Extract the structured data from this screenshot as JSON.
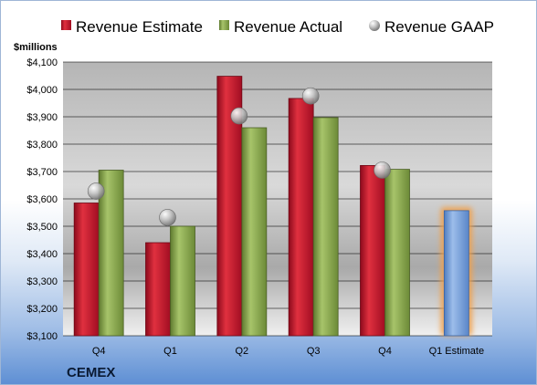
{
  "chart_data": {
    "type": "bar",
    "unit_label": "$millions",
    "brand": "CEMEX",
    "categories": [
      "Q4",
      "Q1",
      "Q2",
      "Q3",
      "Q4",
      "Q1 Estimate"
    ],
    "ylim": [
      3100,
      4100
    ],
    "yticks": [
      3100,
      3200,
      3300,
      3400,
      3500,
      3600,
      3700,
      3800,
      3900,
      4000,
      4100
    ],
    "ytick_labels": [
      "$3,100",
      "$3,200",
      "$3,300",
      "$3,400",
      "$3,500",
      "$3,600",
      "$3,700",
      "$3,800",
      "$3,900",
      "$4,000",
      "$4,100"
    ],
    "grid": true,
    "legend_position": "top",
    "series": [
      {
        "name": "Revenue Estimate",
        "kind": "bar",
        "color": "#c8102e",
        "values": [
          3585,
          3440,
          4048,
          3967,
          3722,
          null
        ]
      },
      {
        "name": "Revenue Actual",
        "kind": "bar",
        "color": "#8cab52",
        "values": [
          3705,
          3500,
          3860,
          3897,
          3708,
          null
        ]
      },
      {
        "name": "Revenue GAAP",
        "kind": "marker",
        "color": "#b8b8b8",
        "values": [
          3628,
          3532,
          3903,
          3976,
          3705,
          null
        ]
      }
    ],
    "estimate": {
      "category_index": 5,
      "value": 3557,
      "color": "#6f9bd8",
      "glow": "#f0a04a"
    }
  }
}
